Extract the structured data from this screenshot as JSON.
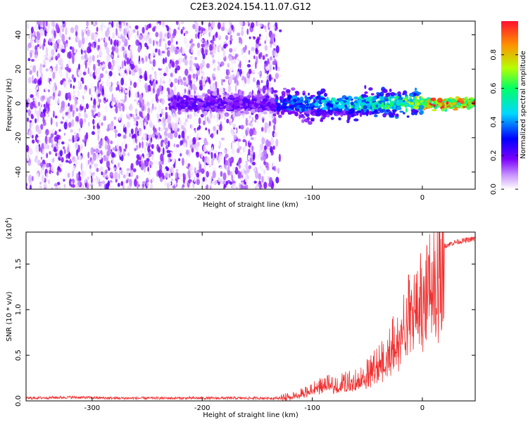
{
  "title": "C2E3.2024.154.11.07.G12",
  "colors": {
    "signal": "#f03030",
    "axis": "#000000"
  },
  "chart_data": [
    {
      "type": "heatmap",
      "xlabel": "Height of straight line (km)",
      "ylabel": "Frequency (Hz)",
      "xlim": [
        -360,
        48
      ],
      "ylim": [
        -50,
        48
      ],
      "xticks": [
        -300,
        -200,
        -100,
        0
      ],
      "xtick_labels": [
        "-300",
        "-200",
        "-100",
        "0"
      ],
      "yticks": [
        40,
        20,
        0,
        -20,
        -40
      ],
      "ytick_labels": [
        "40",
        "20",
        "0",
        "-20",
        "-40"
      ],
      "colorbar": {
        "label": "Normalized spectral amplitude",
        "range": [
          0,
          1
        ],
        "ticks": [
          0.0,
          0.2,
          0.4,
          0.6,
          0.8
        ],
        "tick_labels": [
          "0.0",
          "0.2",
          "0.4",
          "0.6",
          "0.8"
        ],
        "colormap": [
          "#ffffff",
          "#cc99ff",
          "#7a00ff",
          "#0000ff",
          "#00d8ff",
          "#00ff66",
          "#b4ff00",
          "#ff9000",
          "#ff1030"
        ]
      },
      "description_of_content": "Noise floor (purple) spans heights below -130 km; a narrow band of high amplitude near 0 Hz from about -130 km to 48 km, strongest (red) near 0 km and above."
    },
    {
      "type": "line",
      "xlabel": "Height of straight line (km)",
      "ylabel": "SNR (10 * v/v)",
      "y_multiplier": "(x10",
      "y_multiplier_exp": "4",
      "y_multiplier_close": ")",
      "xlim": [
        -360,
        48
      ],
      "ylim": [
        0,
        1.85
      ],
      "xticks": [
        -300,
        -200,
        -100,
        0
      ],
      "xtick_labels": [
        "-300",
        "-200",
        "-100",
        "0"
      ],
      "yticks": [
        0.0,
        0.5,
        1.0,
        1.5
      ],
      "ytick_labels": [
        "0.0",
        "0.5",
        "1.0",
        "1.5"
      ],
      "series": [
        {
          "x": [
            -360,
            -320,
            -280,
            -240,
            -200,
            -160,
            -130,
            -120,
            -110,
            -100,
            -90,
            -80,
            -70,
            -60,
            -50,
            -40,
            -30,
            -20,
            -15,
            -10,
            -5,
            0,
            5,
            10,
            15,
            20,
            30,
            40,
            48
          ],
          "y": [
            0.03,
            0.04,
            0.03,
            0.03,
            0.03,
            0.03,
            0.03,
            0.05,
            0.08,
            0.13,
            0.18,
            0.2,
            0.22,
            0.25,
            0.32,
            0.45,
            0.6,
            0.8,
            0.95,
            1.1,
            1.15,
            1.2,
            1.3,
            1.45,
            1.6,
            1.7,
            1.74,
            1.76,
            1.78
          ]
        }
      ]
    }
  ]
}
